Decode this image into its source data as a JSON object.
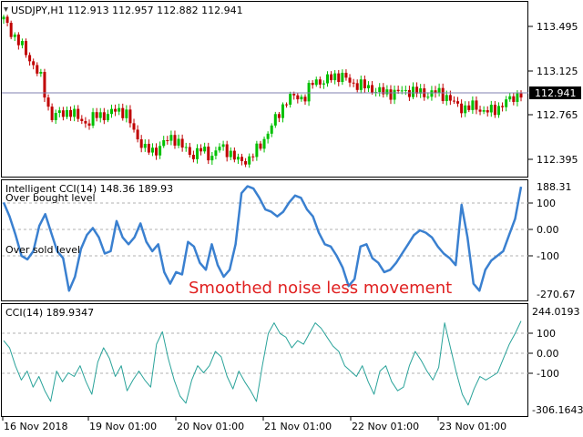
{
  "main_panel": {
    "title": "USDJPY,H1  112.913 112.957 112.882 112.941",
    "current_price_label": "112.941",
    "price_ticks": [
      "113.495",
      "113.125",
      "112.765",
      "112.395"
    ]
  },
  "indicator1": {
    "title": "Intelligent CCI(14) 148.36 189.93",
    "over_bought_label": "Over bought level",
    "over_sold_label": "Over sold level",
    "annotation": "Smoothed noise less movement",
    "ticks": [
      "188.31",
      "100",
      "0.00",
      "-100",
      "-270.67"
    ]
  },
  "indicator2": {
    "title": "CCI(14) 189.9347",
    "ticks": [
      "244.0193",
      "100",
      "0.00",
      "-100",
      "-306.1643"
    ]
  },
  "time_axis": [
    "16 Nov 2018",
    "19 Nov 01:00",
    "20 Nov 01:00",
    "21 Nov 01:00",
    "22 Nov 01:00",
    "23 Nov 01:00"
  ],
  "colors": {
    "bull": "#00c000",
    "bear": "#c00000",
    "icci_line": "#3a80d0",
    "cci_line": "#2aa39a",
    "annotation": "#e02020",
    "grid_dash": "#b0b0b0",
    "current_line": "#8080b0"
  },
  "chart_data": [
    {
      "type": "candlestick",
      "symbol": "USDJPY",
      "timeframe": "H1",
      "close_trace": [
        113.52,
        113.4,
        113.3,
        113.18,
        113.05,
        112.75,
        112.78,
        112.8,
        112.74,
        112.7,
        112.78,
        112.76,
        112.82,
        112.78,
        112.62,
        112.5,
        112.48,
        112.55,
        112.6,
        112.52,
        112.45,
        112.5,
        112.44,
        112.52,
        112.48,
        112.4,
        112.42,
        112.5,
        112.62,
        112.75,
        112.88,
        112.92,
        112.9,
        113.05,
        113.02,
        113.08,
        113.07,
        113.02,
        113.0,
        112.98,
        112.95,
        112.94,
        112.95,
        112.96,
        112.95,
        112.93,
        112.95,
        112.92,
        112.85,
        112.82,
        112.84,
        112.8,
        112.8,
        112.85,
        112.9,
        112.94
      ],
      "ylim": [
        112.3,
        113.65
      ]
    },
    {
      "type": "line",
      "name": "Intelligent CCI(14)",
      "ylim": [
        -270.67,
        188.31
      ],
      "values": [
        120,
        60,
        -20,
        -110,
        -125,
        -90,
        20,
        70,
        -10,
        -90,
        -120,
        -260,
        -200,
        -80,
        -20,
        10,
        -30,
        -100,
        -90,
        40,
        -30,
        -60,
        -30,
        30,
        -50,
        -90,
        -60,
        -180,
        -230,
        -180,
        -190,
        -50,
        -70,
        -140,
        -170,
        -60,
        -150,
        -200,
        -170,
        -60,
        160,
        190,
        180,
        140,
        90,
        80,
        60,
        80,
        120,
        150,
        140,
        90,
        60,
        -10,
        -60,
        -70,
        -110,
        -160,
        -240,
        -210,
        -70,
        -60,
        -120,
        -140,
        -180,
        -170,
        -140,
        -100,
        -60,
        -20,
        0,
        -10,
        -30,
        -70,
        -100,
        -120,
        -150,
        110,
        -30,
        -230,
        -260,
        -170,
        -130,
        -110,
        -90,
        -20,
        50,
        188
      ]
    },
    {
      "type": "line",
      "name": "CCI(14)",
      "ylim": [
        -306.1643,
        244.0193
      ],
      "values": [
        80,
        40,
        -60,
        -140,
        -90,
        -180,
        -120,
        -200,
        -260,
        -90,
        -150,
        -100,
        -120,
        -60,
        -150,
        -220,
        -40,
        40,
        -20,
        -120,
        -60,
        -200,
        -140,
        -90,
        -140,
        -180,
        60,
        130,
        -20,
        -140,
        -230,
        -270,
        -140,
        -60,
        -100,
        -60,
        20,
        -10,
        -120,
        -190,
        -90,
        -150,
        -200,
        -260,
        -60,
        120,
        180,
        120,
        100,
        40,
        80,
        60,
        120,
        180,
        150,
        100,
        50,
        20,
        -60,
        -90,
        -120,
        -60,
        -150,
        -220,
        -90,
        -60,
        -150,
        -200,
        -180,
        -60,
        20,
        -30,
        -90,
        -140,
        -70,
        180,
        40,
        -100,
        -220,
        -280,
        -190,
        -120,
        -140,
        -120,
        -100,
        -20,
        60,
        120,
        190
      ]
    }
  ]
}
